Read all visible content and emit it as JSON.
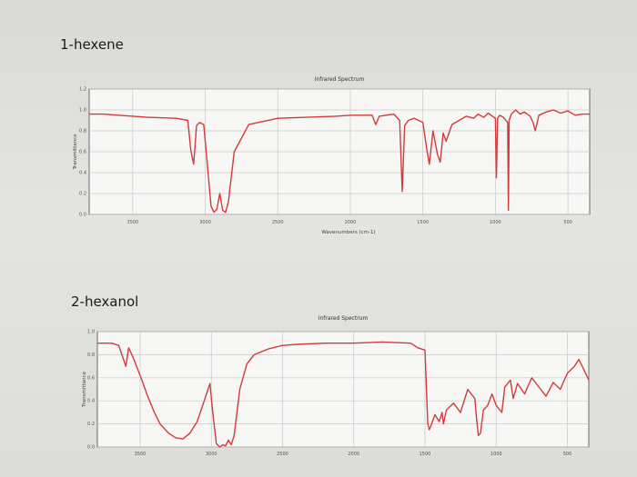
{
  "labels": {
    "compound_1": "1-hexene",
    "compound_2": "2-hexanol"
  },
  "colors": {
    "spectrum_line": "#d23b3b",
    "plot_background": "#f7f7f5",
    "grid": "#c8c8c8"
  },
  "chart_data": [
    {
      "type": "line",
      "title": "Infrared Spectrum",
      "xlabel": "Wavenumbers (cm-1)",
      "ylabel": "Transmittance",
      "xlim": [
        3800,
        350
      ],
      "ylim": [
        0.0,
        1.2
      ],
      "xticks": [
        3500,
        3000,
        2500,
        2000,
        1500,
        1000,
        500
      ],
      "yticks": [
        0.0,
        0.2,
        0.4,
        0.6,
        0.8,
        1.0,
        1.2
      ],
      "grid": true,
      "series": [
        {
          "x": [
            3800,
            3700,
            3600,
            3400,
            3200,
            3120,
            3100,
            3080,
            3060,
            3040,
            3010,
            2990,
            2960,
            2940,
            2920,
            2900,
            2880,
            2860,
            2840,
            2800,
            2700,
            2500,
            2300,
            2100,
            1990,
            1850,
            1825,
            1800,
            1700,
            1660,
            1642,
            1625,
            1600,
            1560,
            1500,
            1470,
            1455,
            1430,
            1400,
            1380,
            1360,
            1340,
            1300,
            1250,
            1200,
            1150,
            1120,
            1080,
            1050,
            1020,
            1000,
            993,
            985,
            970,
            945,
            915,
            910,
            905,
            890,
            860,
            830,
            800,
            760,
            740,
            725,
            700,
            650,
            600,
            550,
            500,
            450,
            400,
            350
          ],
          "y": [
            0.96,
            0.96,
            0.95,
            0.93,
            0.92,
            0.9,
            0.62,
            0.48,
            0.85,
            0.88,
            0.86,
            0.55,
            0.08,
            0.02,
            0.05,
            0.2,
            0.04,
            0.02,
            0.12,
            0.6,
            0.86,
            0.92,
            0.93,
            0.94,
            0.95,
            0.95,
            0.86,
            0.94,
            0.96,
            0.9,
            0.22,
            0.85,
            0.9,
            0.92,
            0.88,
            0.6,
            0.48,
            0.8,
            0.58,
            0.5,
            0.78,
            0.7,
            0.86,
            0.9,
            0.94,
            0.92,
            0.96,
            0.93,
            0.97,
            0.94,
            0.92,
            0.35,
            0.92,
            0.95,
            0.93,
            0.88,
            0.04,
            0.9,
            0.96,
            1.0,
            0.96,
            0.98,
            0.94,
            0.88,
            0.8,
            0.95,
            0.98,
            1.0,
            0.97,
            0.99,
            0.95,
            0.96,
            0.96
          ]
        }
      ]
    },
    {
      "type": "line",
      "title": "Infrared Spectrum",
      "xlabel": "",
      "ylabel": "Transmittance",
      "xlim": [
        3800,
        350
      ],
      "ylim": [
        0.0,
        1.0
      ],
      "xticks": [
        3500,
        3000,
        2500,
        2000,
        1500,
        1000,
        500
      ],
      "yticks": [
        0.0,
        0.2,
        0.4,
        0.6,
        0.8,
        1.0
      ],
      "grid": true,
      "series": [
        {
          "x": [
            3800,
            3700,
            3650,
            3600,
            3580,
            3550,
            3500,
            3450,
            3400,
            3360,
            3300,
            3250,
            3200,
            3150,
            3100,
            3050,
            3010,
            2990,
            2965,
            2940,
            2920,
            2900,
            2880,
            2860,
            2840,
            2800,
            2750,
            2700,
            2600,
            2500,
            2400,
            2200,
            2000,
            1800,
            1600,
            1550,
            1500,
            1480,
            1470,
            1460,
            1430,
            1400,
            1380,
            1370,
            1350,
            1300,
            1250,
            1200,
            1150,
            1140,
            1125,
            1110,
            1090,
            1060,
            1030,
            1000,
            960,
            940,
            900,
            880,
            850,
            800,
            780,
            750,
            700,
            650,
            600,
            550,
            500,
            450,
            420,
            380,
            350
          ],
          "y": [
            0.9,
            0.9,
            0.88,
            0.7,
            0.86,
            0.78,
            0.62,
            0.45,
            0.3,
            0.2,
            0.12,
            0.08,
            0.07,
            0.12,
            0.22,
            0.4,
            0.55,
            0.3,
            0.03,
            0.0,
            0.02,
            0.01,
            0.06,
            0.02,
            0.1,
            0.5,
            0.72,
            0.8,
            0.85,
            0.88,
            0.89,
            0.9,
            0.9,
            0.91,
            0.9,
            0.86,
            0.84,
            0.2,
            0.15,
            0.18,
            0.28,
            0.22,
            0.3,
            0.2,
            0.32,
            0.38,
            0.3,
            0.5,
            0.42,
            0.28,
            0.1,
            0.12,
            0.32,
            0.36,
            0.46,
            0.36,
            0.3,
            0.52,
            0.58,
            0.42,
            0.55,
            0.46,
            0.52,
            0.6,
            0.52,
            0.44,
            0.56,
            0.5,
            0.64,
            0.7,
            0.76,
            0.66,
            0.58
          ]
        }
      ]
    }
  ]
}
